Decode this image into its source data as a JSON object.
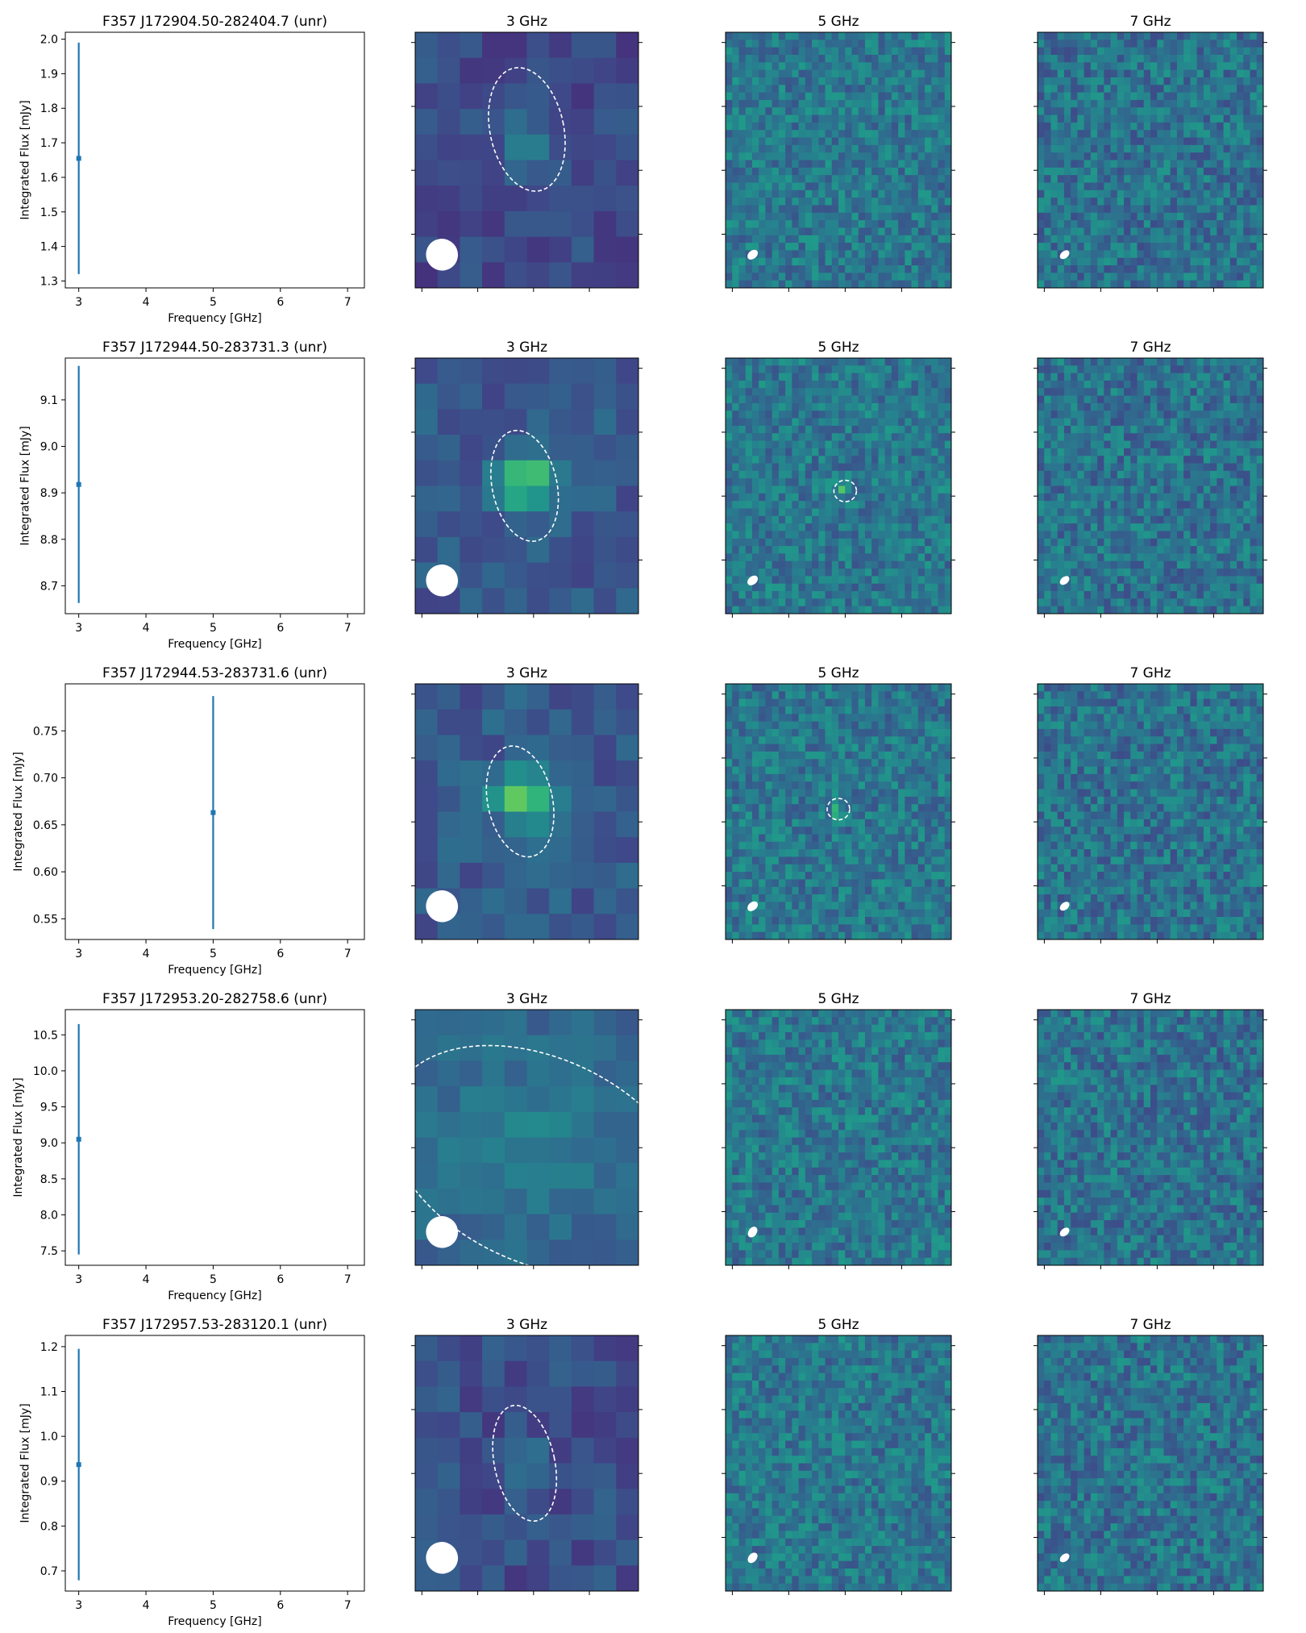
{
  "chart_data": [
    {
      "type": "scatter",
      "title": "F357 J172904.50-282404.7 (unr)",
      "xlabel": "Frequency [GHz]",
      "ylabel": "Integrated Flux [mJy]",
      "xlim": [
        2.8,
        7.25
      ],
      "ylim": [
        1.28,
        2.02
      ],
      "xticks": [
        "3",
        "4",
        "5",
        "6",
        "7"
      ],
      "yticks": [
        "1.3",
        "1.4",
        "1.5",
        "1.6",
        "1.7",
        "1.8",
        "1.9",
        "2.0"
      ],
      "series": [
        {
          "x": [
            3
          ],
          "y": [
            1.655
          ],
          "yerr": [
            0.335
          ]
        }
      ],
      "maps": [
        {
          "title": "3 GHz",
          "grid": 10,
          "seed": 11,
          "base": 0.22,
          "amp": 0.08,
          "source": {
            "cx": 0.52,
            "cy": 0.44,
            "a": 0.11,
            "b": 0.1,
            "peak": 0.18
          },
          "region": {
            "cx": 0.5,
            "cy": 0.38,
            "rx": 0.165,
            "ry": 0.245,
            "rot": -12
          },
          "beam": {
            "cx": 0.12,
            "cy": 0.87,
            "rx": 0.072,
            "ry": 0.062,
            "rot": 35
          }
        },
        {
          "title": "5 GHz",
          "grid": 34,
          "seed": 21,
          "base": 0.4,
          "amp": 0.14,
          "beam": {
            "cx": 0.12,
            "cy": 0.87,
            "rx": 0.026,
            "ry": 0.016,
            "rot": -40
          }
        },
        {
          "title": "7 GHz",
          "grid": 34,
          "seed": 31,
          "base": 0.38,
          "amp": 0.15,
          "beam": {
            "cx": 0.12,
            "cy": 0.87,
            "rx": 0.024,
            "ry": 0.014,
            "rot": -40
          }
        }
      ]
    },
    {
      "type": "scatter",
      "title": "F357 J172944.50-283731.3 (unr)",
      "xlabel": "Frequency [GHz]",
      "ylabel": "Integrated Flux [mJy]",
      "xlim": [
        2.8,
        7.25
      ],
      "ylim": [
        8.64,
        9.19
      ],
      "xticks": [
        "3",
        "4",
        "5",
        "6",
        "7"
      ],
      "yticks": [
        "8.7",
        "8.8",
        "8.9",
        "9.0",
        "9.1"
      ],
      "series": [
        {
          "x": [
            3
          ],
          "y": [
            8.918
          ],
          "yerr": [
            0.255
          ]
        }
      ],
      "maps": [
        {
          "title": "3 GHz",
          "grid": 10,
          "seed": 12,
          "base": 0.28,
          "amp": 0.08,
          "source": {
            "cx": 0.5,
            "cy": 0.48,
            "a": 0.13,
            "b": 0.11,
            "peak": 0.52
          },
          "region": {
            "cx": 0.49,
            "cy": 0.5,
            "rx": 0.145,
            "ry": 0.22,
            "rot": -12
          },
          "beam": {
            "cx": 0.12,
            "cy": 0.87,
            "rx": 0.072,
            "ry": 0.062,
            "rot": 35
          }
        },
        {
          "title": "5 GHz",
          "grid": 34,
          "seed": 22,
          "base": 0.4,
          "amp": 0.14,
          "source": {
            "cx": 0.52,
            "cy": 0.52,
            "a": 0.018,
            "b": 0.018,
            "peak": 0.45
          },
          "region": {
            "cx": 0.53,
            "cy": 0.52,
            "rx": 0.05,
            "ry": 0.042,
            "rot": 0
          },
          "beam": {
            "cx": 0.12,
            "cy": 0.87,
            "rx": 0.026,
            "ry": 0.016,
            "rot": -40
          }
        },
        {
          "title": "7 GHz",
          "grid": 34,
          "seed": 32,
          "base": 0.38,
          "amp": 0.15,
          "beam": {
            "cx": 0.12,
            "cy": 0.87,
            "rx": 0.024,
            "ry": 0.014,
            "rot": -40
          }
        }
      ]
    },
    {
      "type": "scatter",
      "title": "F357 J172944.53-283731.6 (unr)",
      "xlabel": "Frequency [GHz]",
      "ylabel": "Integrated Flux [mJy]",
      "xlim": [
        2.8,
        7.25
      ],
      "ylim": [
        0.528,
        0.8
      ],
      "xticks": [
        "3",
        "4",
        "5",
        "6",
        "7"
      ],
      "yticks": [
        "0.55",
        "0.60",
        "0.65",
        "0.70",
        "0.75"
      ],
      "series": [
        {
          "x": [
            5
          ],
          "y": [
            0.663
          ],
          "yerr": [
            0.124
          ]
        }
      ],
      "maps": [
        {
          "title": "3 GHz",
          "grid": 10,
          "seed": 13,
          "base": 0.28,
          "amp": 0.08,
          "source": {
            "cx": 0.49,
            "cy": 0.44,
            "a": 0.13,
            "b": 0.11,
            "peak": 0.52
          },
          "region": {
            "cx": 0.47,
            "cy": 0.46,
            "rx": 0.145,
            "ry": 0.22,
            "rot": -12
          },
          "beam": {
            "cx": 0.12,
            "cy": 0.87,
            "rx": 0.072,
            "ry": 0.062,
            "rot": 35
          }
        },
        {
          "title": "5 GHz",
          "grid": 34,
          "seed": 23,
          "base": 0.4,
          "amp": 0.14,
          "source": {
            "cx": 0.5,
            "cy": 0.5,
            "a": 0.018,
            "b": 0.018,
            "peak": 0.45
          },
          "region": {
            "cx": 0.5,
            "cy": 0.49,
            "rx": 0.05,
            "ry": 0.042,
            "rot": 0
          },
          "beam": {
            "cx": 0.12,
            "cy": 0.87,
            "rx": 0.026,
            "ry": 0.016,
            "rot": -40
          }
        },
        {
          "title": "7 GHz",
          "grid": 34,
          "seed": 33,
          "base": 0.38,
          "amp": 0.15,
          "beam": {
            "cx": 0.12,
            "cy": 0.87,
            "rx": 0.024,
            "ry": 0.014,
            "rot": -40
          }
        }
      ]
    },
    {
      "type": "scatter",
      "title": "F357 J172953.20-282758.6 (unr)",
      "xlabel": "Frequency [GHz]",
      "ylabel": "Integrated Flux [mJy]",
      "xlim": [
        2.8,
        7.25
      ],
      "ylim": [
        7.3,
        10.85
      ],
      "xticks": [
        "3",
        "4",
        "5",
        "6",
        "7"
      ],
      "yticks": [
        "7.5",
        "8.0",
        "8.5",
        "9.0",
        "9.5",
        "10.0",
        "10.5"
      ],
      "series": [
        {
          "x": [
            3
          ],
          "y": [
            9.05
          ],
          "yerr": [
            1.6
          ]
        }
      ],
      "maps": [
        {
          "title": "3 GHz",
          "grid": 10,
          "seed": 14,
          "base": 0.33,
          "amp": 0.06,
          "source": {
            "cx": 0.5,
            "cy": 0.5,
            "a": 0.35,
            "b": 0.25,
            "peak": 0.1
          },
          "region": {
            "cx": 0.56,
            "cy": 0.59,
            "rx": 0.72,
            "ry": 0.4,
            "rot": 25
          },
          "beam": {
            "cx": 0.12,
            "cy": 0.87,
            "rx": 0.072,
            "ry": 0.062,
            "rot": 35
          }
        },
        {
          "title": "5 GHz",
          "grid": 34,
          "seed": 24,
          "base": 0.4,
          "amp": 0.14,
          "beam": {
            "cx": 0.12,
            "cy": 0.87,
            "rx": 0.026,
            "ry": 0.016,
            "rot": -55
          }
        },
        {
          "title": "7 GHz",
          "grid": 34,
          "seed": 34,
          "base": 0.38,
          "amp": 0.15,
          "beam": {
            "cx": 0.12,
            "cy": 0.87,
            "rx": 0.024,
            "ry": 0.014,
            "rot": -40
          }
        }
      ]
    },
    {
      "type": "scatter",
      "title": "F357 J172957.53-283120.1 (unr)",
      "xlabel": "Frequency [GHz]",
      "ylabel": "Integrated Flux [mJy]",
      "xlim": [
        2.8,
        7.25
      ],
      "ylim": [
        0.655,
        1.225
      ],
      "xticks": [
        "3",
        "4",
        "5",
        "6",
        "7"
      ],
      "yticks": [
        "0.7",
        "0.8",
        "0.9",
        "1.0",
        "1.1",
        "1.2"
      ],
      "series": [
        {
          "x": [
            3
          ],
          "y": [
            0.937
          ],
          "yerr": [
            0.258
          ]
        }
      ],
      "maps": [
        {
          "title": "3 GHz",
          "grid": 10,
          "seed": 15,
          "base": 0.24,
          "amp": 0.08,
          "source": {
            "cx": 0.48,
            "cy": 0.47,
            "a": 0.1,
            "b": 0.09,
            "peak": 0.15
          },
          "region": {
            "cx": 0.49,
            "cy": 0.5,
            "rx": 0.135,
            "ry": 0.23,
            "rot": -12
          },
          "beam": {
            "cx": 0.12,
            "cy": 0.87,
            "rx": 0.072,
            "ry": 0.062,
            "rot": 35
          }
        },
        {
          "title": "5 GHz",
          "grid": 34,
          "seed": 25,
          "base": 0.4,
          "amp": 0.14,
          "beam": {
            "cx": 0.12,
            "cy": 0.87,
            "rx": 0.026,
            "ry": 0.016,
            "rot": -50
          }
        },
        {
          "title": "7 GHz",
          "grid": 34,
          "seed": 35,
          "base": 0.38,
          "amp": 0.15,
          "beam": {
            "cx": 0.12,
            "cy": 0.87,
            "rx": 0.024,
            "ry": 0.014,
            "rot": -40
          }
        }
      ]
    }
  ]
}
